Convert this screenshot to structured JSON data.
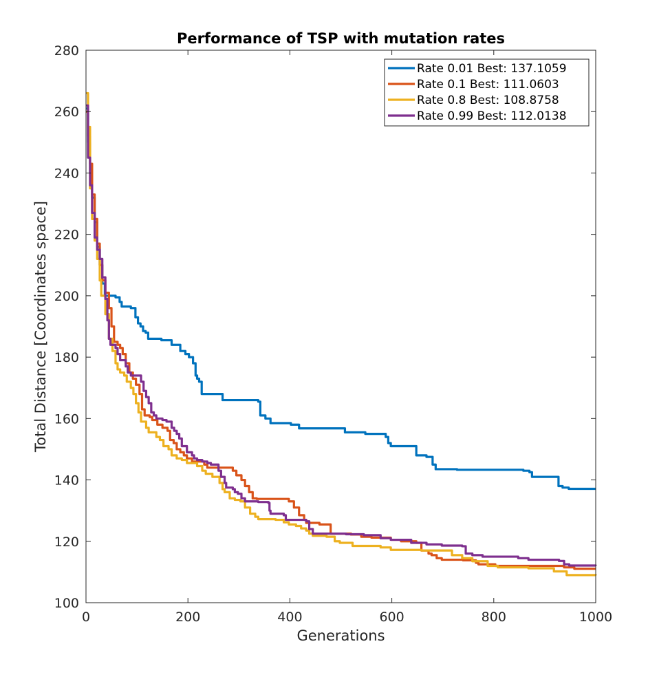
{
  "chart_data": {
    "type": "line",
    "title": "Performance of TSP with mutation rates",
    "xlabel": "Generations",
    "ylabel": "Total Distance [Coordinates space]",
    "xlim": [
      0,
      1000
    ],
    "ylim": [
      100,
      280
    ],
    "xticks": [
      0,
      200,
      400,
      600,
      800,
      1000
    ],
    "yticks": [
      100,
      120,
      140,
      160,
      180,
      200,
      220,
      240,
      260,
      280
    ],
    "grid": false,
    "legend_position": "top-right",
    "series": [
      {
        "name": "Rate 0.01 Best: 137.1059",
        "color": "#0072BD",
        "step": true,
        "points": [
          [
            0,
            261
          ],
          [
            4,
            250
          ],
          [
            8,
            240
          ],
          [
            12,
            232
          ],
          [
            17,
            224
          ],
          [
            22,
            216
          ],
          [
            27,
            210
          ],
          [
            32,
            204
          ],
          [
            37,
            200
          ],
          [
            58,
            199.5
          ],
          [
            66,
            198
          ],
          [
            70,
            196.5
          ],
          [
            88,
            196
          ],
          [
            97,
            193
          ],
          [
            102,
            191
          ],
          [
            107,
            190
          ],
          [
            112,
            188.5
          ],
          [
            117,
            188
          ],
          [
            122,
            186
          ],
          [
            148,
            185.5
          ],
          [
            168,
            184
          ],
          [
            185,
            182
          ],
          [
            195,
            181
          ],
          [
            202,
            180
          ],
          [
            210,
            178
          ],
          [
            215,
            174
          ],
          [
            218,
            173
          ],
          [
            222,
            172
          ],
          [
            227,
            168
          ],
          [
            268,
            166
          ],
          [
            338,
            165.5
          ],
          [
            342,
            161
          ],
          [
            352,
            160
          ],
          [
            362,
            158.5
          ],
          [
            402,
            158
          ],
          [
            418,
            156.8
          ],
          [
            508,
            155.5
          ],
          [
            548,
            155
          ],
          [
            588,
            154
          ],
          [
            593,
            152
          ],
          [
            598,
            151
          ],
          [
            648,
            148
          ],
          [
            668,
            147.5
          ],
          [
            680,
            145
          ],
          [
            686,
            143.5
          ],
          [
            728,
            143.3
          ],
          [
            858,
            143
          ],
          [
            870,
            142.5
          ],
          [
            875,
            141
          ],
          [
            927,
            138
          ],
          [
            935,
            137.5
          ],
          [
            947,
            137.1
          ],
          [
            1000,
            137.1
          ]
        ]
      },
      {
        "name": "Rate 0.1 Best: 111.0603",
        "color": "#D95319",
        "step": true,
        "points": [
          [
            0,
            260
          ],
          [
            4,
            252
          ],
          [
            8,
            243
          ],
          [
            12,
            233
          ],
          [
            17,
            225
          ],
          [
            22,
            217
          ],
          [
            27,
            210
          ],
          [
            32,
            205
          ],
          [
            38,
            201
          ],
          [
            45,
            196
          ],
          [
            50,
            190
          ],
          [
            55,
            185
          ],
          [
            62,
            184
          ],
          [
            67,
            183
          ],
          [
            72,
            181
          ],
          [
            78,
            178
          ],
          [
            85,
            175
          ],
          [
            92,
            173
          ],
          [
            98,
            171
          ],
          [
            105,
            168
          ],
          [
            110,
            163
          ],
          [
            115,
            161
          ],
          [
            125,
            160.5
          ],
          [
            130,
            159.5
          ],
          [
            140,
            158
          ],
          [
            150,
            157
          ],
          [
            160,
            156
          ],
          [
            165,
            153
          ],
          [
            172,
            152
          ],
          [
            178,
            150
          ],
          [
            185,
            149
          ],
          [
            192,
            148
          ],
          [
            198,
            147
          ],
          [
            208,
            146
          ],
          [
            232,
            145
          ],
          [
            238,
            144
          ],
          [
            288,
            143
          ],
          [
            295,
            141.5
          ],
          [
            305,
            140
          ],
          [
            312,
            138
          ],
          [
            320,
            136
          ],
          [
            327,
            134
          ],
          [
            335,
            133.8
          ],
          [
            385,
            133.8
          ],
          [
            398,
            133
          ],
          [
            408,
            131
          ],
          [
            418,
            128.5
          ],
          [
            428,
            127
          ],
          [
            432,
            126
          ],
          [
            458,
            125.5
          ],
          [
            480,
            122.5
          ],
          [
            520,
            122.2
          ],
          [
            540,
            121.5
          ],
          [
            560,
            121.2
          ],
          [
            598,
            120.5
          ],
          [
            618,
            120
          ],
          [
            648,
            119.5
          ],
          [
            658,
            117
          ],
          [
            672,
            116
          ],
          [
            678,
            115.5
          ],
          [
            688,
            114.5
          ],
          [
            698,
            114
          ],
          [
            740,
            113.8
          ],
          [
            765,
            113
          ],
          [
            770,
            112.5
          ],
          [
            803,
            112
          ],
          [
            938,
            111.5
          ],
          [
            958,
            111.06
          ],
          [
            1000,
            111.06
          ]
        ]
      },
      {
        "name": "Rate 0.8 Best: 108.8758",
        "color": "#EDB120",
        "step": true,
        "points": [
          [
            0,
            266
          ],
          [
            4,
            255
          ],
          [
            8,
            235
          ],
          [
            12,
            225
          ],
          [
            17,
            218
          ],
          [
            22,
            212
          ],
          [
            27,
            205
          ],
          [
            30,
            200
          ],
          [
            38,
            194
          ],
          [
            45,
            186
          ],
          [
            52,
            182
          ],
          [
            58,
            178
          ],
          [
            62,
            176
          ],
          [
            67,
            175
          ],
          [
            75,
            174
          ],
          [
            80,
            172
          ],
          [
            88,
            170
          ],
          [
            93,
            168
          ],
          [
            98,
            165
          ],
          [
            103,
            162
          ],
          [
            108,
            159
          ],
          [
            118,
            157
          ],
          [
            123,
            155.5
          ],
          [
            138,
            154
          ],
          [
            145,
            153
          ],
          [
            152,
            151
          ],
          [
            162,
            150
          ],
          [
            168,
            148
          ],
          [
            178,
            147
          ],
          [
            188,
            146.5
          ],
          [
            198,
            145.5
          ],
          [
            218,
            144.5
          ],
          [
            228,
            143
          ],
          [
            235,
            142
          ],
          [
            248,
            141
          ],
          [
            262,
            139
          ],
          [
            268,
            137
          ],
          [
            272,
            136
          ],
          [
            282,
            134
          ],
          [
            292,
            133.5
          ],
          [
            303,
            133
          ],
          [
            312,
            131
          ],
          [
            322,
            129
          ],
          [
            332,
            128
          ],
          [
            338,
            127.2
          ],
          [
            368,
            127.2
          ],
          [
            372,
            127
          ],
          [
            388,
            126.2
          ],
          [
            398,
            125.5
          ],
          [
            412,
            125
          ],
          [
            422,
            124.2
          ],
          [
            432,
            123.5
          ],
          [
            438,
            122.5
          ],
          [
            445,
            121.8
          ],
          [
            472,
            121.5
          ],
          [
            488,
            120
          ],
          [
            498,
            119.5
          ],
          [
            523,
            118.5
          ],
          [
            578,
            118
          ],
          [
            598,
            117.2
          ],
          [
            658,
            117
          ],
          [
            718,
            115.5
          ],
          [
            738,
            114.5
          ],
          [
            758,
            113.5
          ],
          [
            788,
            112
          ],
          [
            808,
            111.5
          ],
          [
            868,
            111.2
          ],
          [
            918,
            110.2
          ],
          [
            943,
            109
          ],
          [
            1000,
            108.88
          ]
        ]
      },
      {
        "name": "Rate 0.99 Best: 112.0138",
        "color": "#7E2F8E",
        "step": true,
        "points": [
          [
            0,
            262
          ],
          [
            4,
            245
          ],
          [
            8,
            236
          ],
          [
            12,
            227
          ],
          [
            17,
            219
          ],
          [
            22,
            215
          ],
          [
            27,
            212
          ],
          [
            32,
            206
          ],
          [
            38,
            199
          ],
          [
            42,
            192
          ],
          [
            45,
            186
          ],
          [
            48,
            184
          ],
          [
            58,
            183
          ],
          [
            62,
            181
          ],
          [
            67,
            179
          ],
          [
            78,
            177
          ],
          [
            82,
            175
          ],
          [
            88,
            174
          ],
          [
            108,
            172
          ],
          [
            113,
            169
          ],
          [
            118,
            167
          ],
          [
            123,
            165
          ],
          [
            128,
            162
          ],
          [
            133,
            161
          ],
          [
            138,
            160
          ],
          [
            150,
            159.5
          ],
          [
            158,
            159
          ],
          [
            168,
            157
          ],
          [
            173,
            156
          ],
          [
            178,
            155
          ],
          [
            183,
            153.5
          ],
          [
            188,
            151
          ],
          [
            198,
            149
          ],
          [
            208,
            148
          ],
          [
            212,
            147
          ],
          [
            218,
            146.5
          ],
          [
            228,
            146
          ],
          [
            238,
            145.5
          ],
          [
            245,
            145
          ],
          [
            252,
            145
          ],
          [
            260,
            143
          ],
          [
            265,
            141
          ],
          [
            272,
            139
          ],
          [
            275,
            137.5
          ],
          [
            288,
            137
          ],
          [
            292,
            136
          ],
          [
            298,
            135.5
          ],
          [
            305,
            134
          ],
          [
            312,
            133
          ],
          [
            338,
            132.8
          ],
          [
            358,
            132.5
          ],
          [
            360,
            130
          ],
          [
            362,
            129
          ],
          [
            388,
            128.5
          ],
          [
            392,
            127
          ],
          [
            432,
            126.5
          ],
          [
            438,
            124
          ],
          [
            445,
            122.5
          ],
          [
            510,
            122.3
          ],
          [
            545,
            122
          ],
          [
            578,
            121
          ],
          [
            598,
            120.5
          ],
          [
            638,
            119.5
          ],
          [
            668,
            119
          ],
          [
            698,
            118.6
          ],
          [
            738,
            118.4
          ],
          [
            745,
            116
          ],
          [
            758,
            115.5
          ],
          [
            778,
            115
          ],
          [
            848,
            114.5
          ],
          [
            868,
            114
          ],
          [
            928,
            113.6
          ],
          [
            938,
            112.5
          ],
          [
            948,
            112.1
          ],
          [
            1000,
            112.01
          ]
        ]
      }
    ]
  }
}
